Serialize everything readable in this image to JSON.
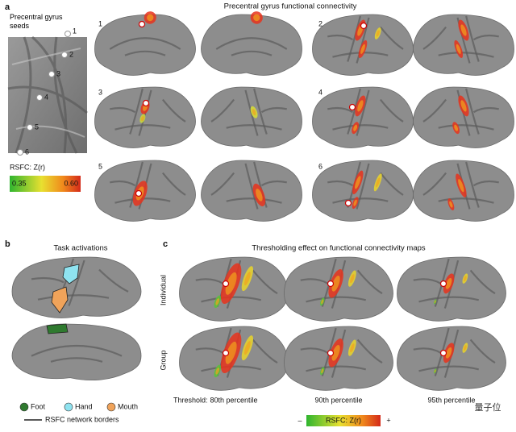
{
  "panel_a": {
    "letter": "a",
    "seeds_title": "Precentral gyrus seeds",
    "seed_labels": [
      "1",
      "2",
      "3",
      "4",
      "5",
      "6"
    ],
    "colorbar": {
      "label": "RSFC: Z(r)",
      "min": "0.35",
      "max": "0.60"
    },
    "title": "Precentral gyrus functional connectivity",
    "map_labels": [
      "1",
      "2",
      "3",
      "4",
      "5",
      "6"
    ]
  },
  "panel_b": {
    "letter": "b",
    "title": "Task activations",
    "legend": [
      "Foot",
      "Hand",
      "Mouth"
    ],
    "border_legend": "RSFC network borders"
  },
  "panel_c": {
    "letter": "c",
    "title": "Thresholding effect on functional connectivity maps",
    "rows": [
      "Individual",
      "Group"
    ],
    "threshold_label": "Threshold:",
    "thresholds": [
      "80th percentile",
      "90th percentile",
      "95th percentile"
    ],
    "colorbar": {
      "minus": "–",
      "label": "RSFC: Z(r)",
      "plus": "+"
    }
  },
  "watermark": "量子位"
}
